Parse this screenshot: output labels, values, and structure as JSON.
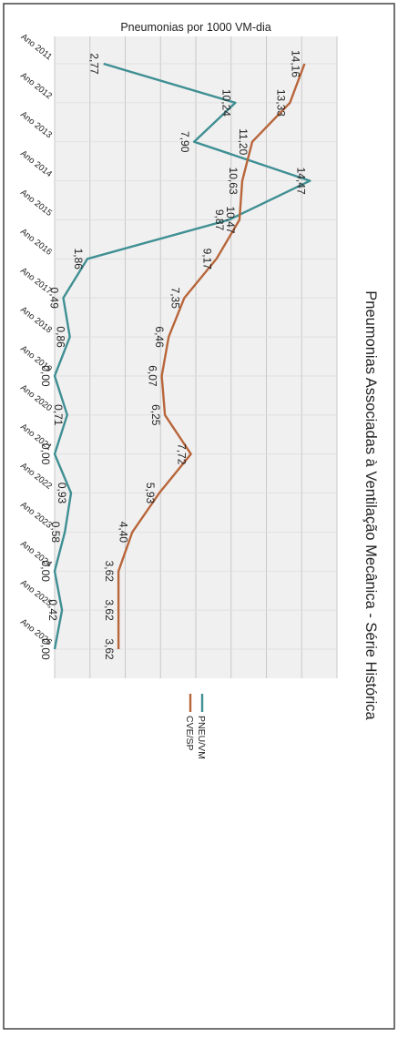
{
  "chart_data": {
    "type": "line",
    "title": "Pneumonias Associadas à Ventilação Mecânica - Série Histórica",
    "ylabel": "Pneumonias por 1000 VM-dia",
    "xlabel": "",
    "categories": [
      "Ano 2011",
      "Ano 2012",
      "Ano 2013",
      "Ano 2014",
      "Ano 2015",
      "Ano 2016",
      "Ano 2017",
      "Ano 2018",
      "Ano 2019",
      "Ano 2020",
      "Ano 2021",
      "Ano 2022",
      "Ano 2023",
      "Ano 2024",
      "Ano 2025",
      "Ano 2026"
    ],
    "ylim": [
      0,
      16
    ],
    "grid": true,
    "legend_position": "bottom",
    "series": [
      {
        "name": "PNEU/VM",
        "color": "#3f8f93",
        "values": [
          2.77,
          10.24,
          7.9,
          14.47,
          9.87,
          1.86,
          0.49,
          0.86,
          0.0,
          0.71,
          0.0,
          0.93,
          0.58,
          0.0,
          0.42,
          0.0
        ],
        "labels": [
          "2,77",
          "10,24",
          "7,90",
          "14,47",
          "9,87",
          "1,86",
          "0,49",
          "0,86",
          "0,00",
          "0,71",
          "0,00",
          "0,93",
          "0,58",
          "0,00",
          "0,42",
          "0,00"
        ]
      },
      {
        "name": "CVE/SP",
        "color": "#b8653a",
        "values": [
          14.16,
          13.33,
          11.2,
          10.63,
          10.47,
          9.17,
          7.35,
          6.46,
          6.07,
          6.25,
          7.72,
          5.93,
          4.4,
          3.62,
          3.62,
          3.62
        ],
        "labels": [
          "14,16",
          "13,33",
          "11,20",
          "10,63",
          "10,47",
          "9,17",
          "7,35",
          "6,46",
          "6,07",
          "6,25",
          "7,72",
          "5,93",
          "4,40",
          "3,62",
          "3,62",
          "3,62"
        ]
      }
    ]
  }
}
